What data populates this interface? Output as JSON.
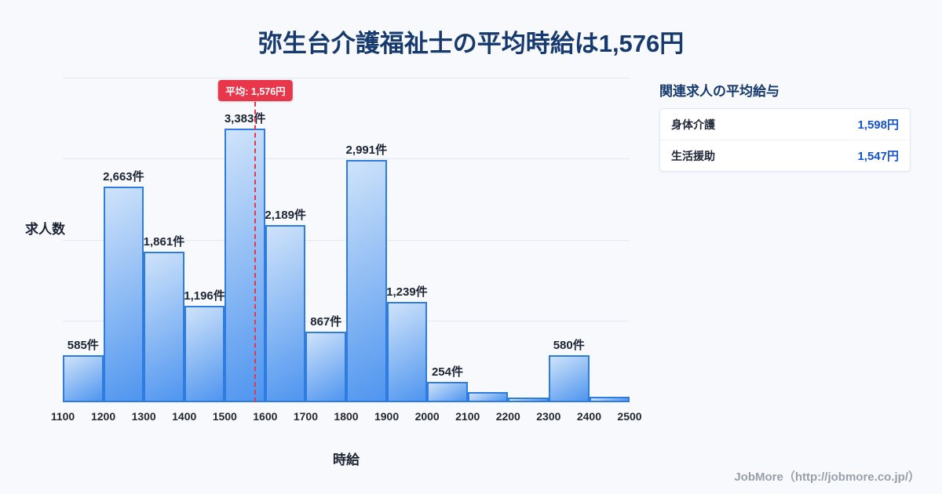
{
  "title": "弥生台介護福祉士の平均時給は1,576円",
  "colors": {
    "background": "#f7f9fd",
    "title": "#173a6e",
    "accent_blue": "#1553c9",
    "text_dark": "#1d2433",
    "muted": "#98a0aa"
  },
  "chart_data": {
    "type": "bar",
    "title": "弥生台介護福祉士の平均時給は1,576円",
    "xlabel": "時給",
    "ylabel": "求人数",
    "x_ticks": [
      "1100",
      "1200",
      "1300",
      "1400",
      "1500",
      "1600",
      "1700",
      "1800",
      "1900",
      "2000",
      "2100",
      "2200",
      "2300",
      "2400",
      "2500"
    ],
    "x_range": [
      1100,
      2500
    ],
    "bin_width": 100,
    "values": [
      585,
      2663,
      1861,
      1196,
      3383,
      2189,
      867,
      2991,
      1239,
      254,
      130,
      60,
      580,
      70
    ],
    "bar_labels": [
      "585件",
      "2,663件",
      "1,861件",
      "1,196件",
      "3,383件",
      "2,189件",
      "867件",
      "2,991件",
      "1,239件",
      "254件",
      "",
      "",
      "580件",
      ""
    ],
    "ylim": [
      0,
      4000
    ],
    "grid": "horizontal",
    "legend": "none",
    "average": {
      "value": 1576,
      "label": "平均: 1,576円"
    },
    "colors": {
      "bar_gradient_top": "#cfe3fa",
      "bar_gradient_bottom": "#4f95ef",
      "bar_border": "#2f7ce0",
      "average_line": "#e8374a"
    }
  },
  "side_panel": {
    "title": "関連求人の平均給与",
    "rows": [
      {
        "label": "身体介護",
        "value": "1,598円"
      },
      {
        "label": "生活援助",
        "value": "1,547円"
      }
    ]
  },
  "footer": {
    "credit": "JobMore（http://jobmore.co.jp/）"
  }
}
